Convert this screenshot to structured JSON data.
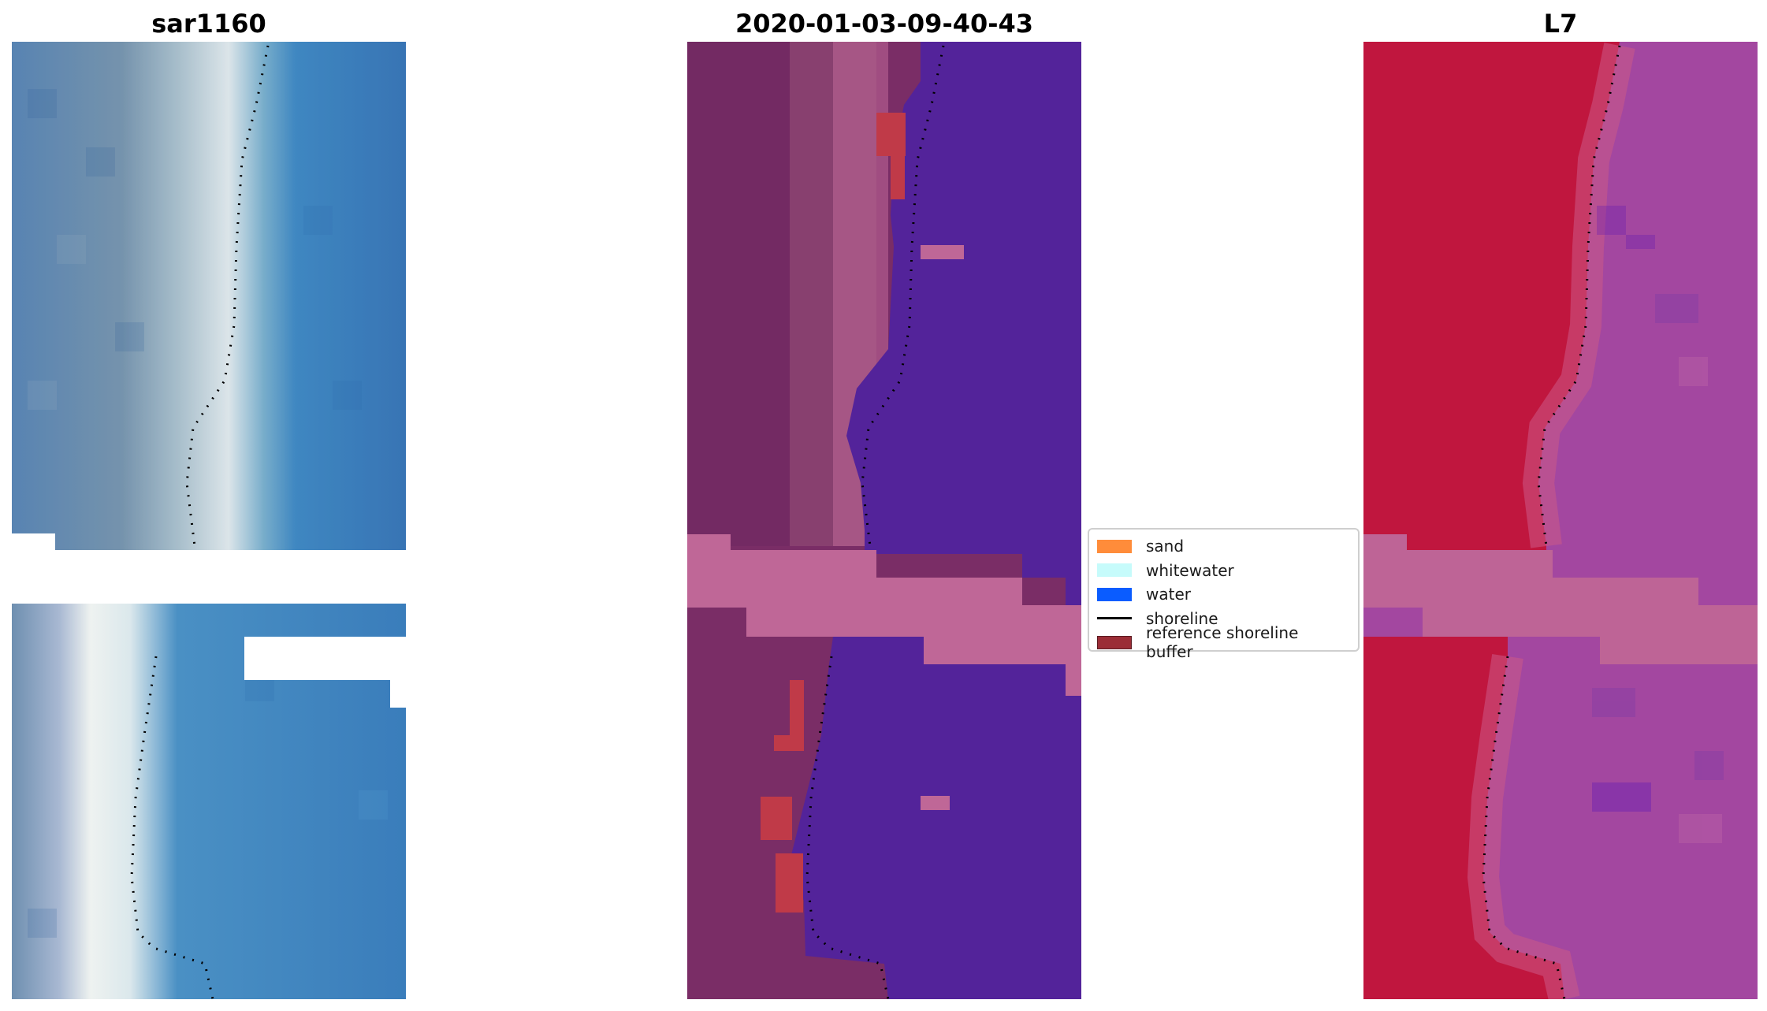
{
  "panels": [
    {
      "title": "sar1160"
    },
    {
      "title": "2020-01-03-09-40-43"
    },
    {
      "title": "L7"
    }
  ],
  "legend": {
    "items": [
      {
        "label": "sand",
        "color": "#ff8c3a",
        "kind": "patch"
      },
      {
        "label": "whitewater",
        "color": "#c6fbfb",
        "kind": "patch"
      },
      {
        "label": "water",
        "color": "#0a5cff",
        "kind": "patch"
      },
      {
        "label": "shoreline",
        "color": "#000000",
        "kind": "line"
      },
      {
        "label": "reference shoreline buffer",
        "color": "#9b2d36",
        "kind": "patch"
      }
    ]
  },
  "colors": {
    "rgb_water": "#3a7fc1",
    "rgb_land": "#6f8faa",
    "rgb_white": "#eef3f2",
    "class_bg": "#7a2d66",
    "class_water": "#53239a",
    "class_pink": "#bf6797",
    "class_red": "#c03a48",
    "l7_red": "#c0163e",
    "l7_purple": "#a347a0",
    "l7_pink": "#be6496"
  }
}
